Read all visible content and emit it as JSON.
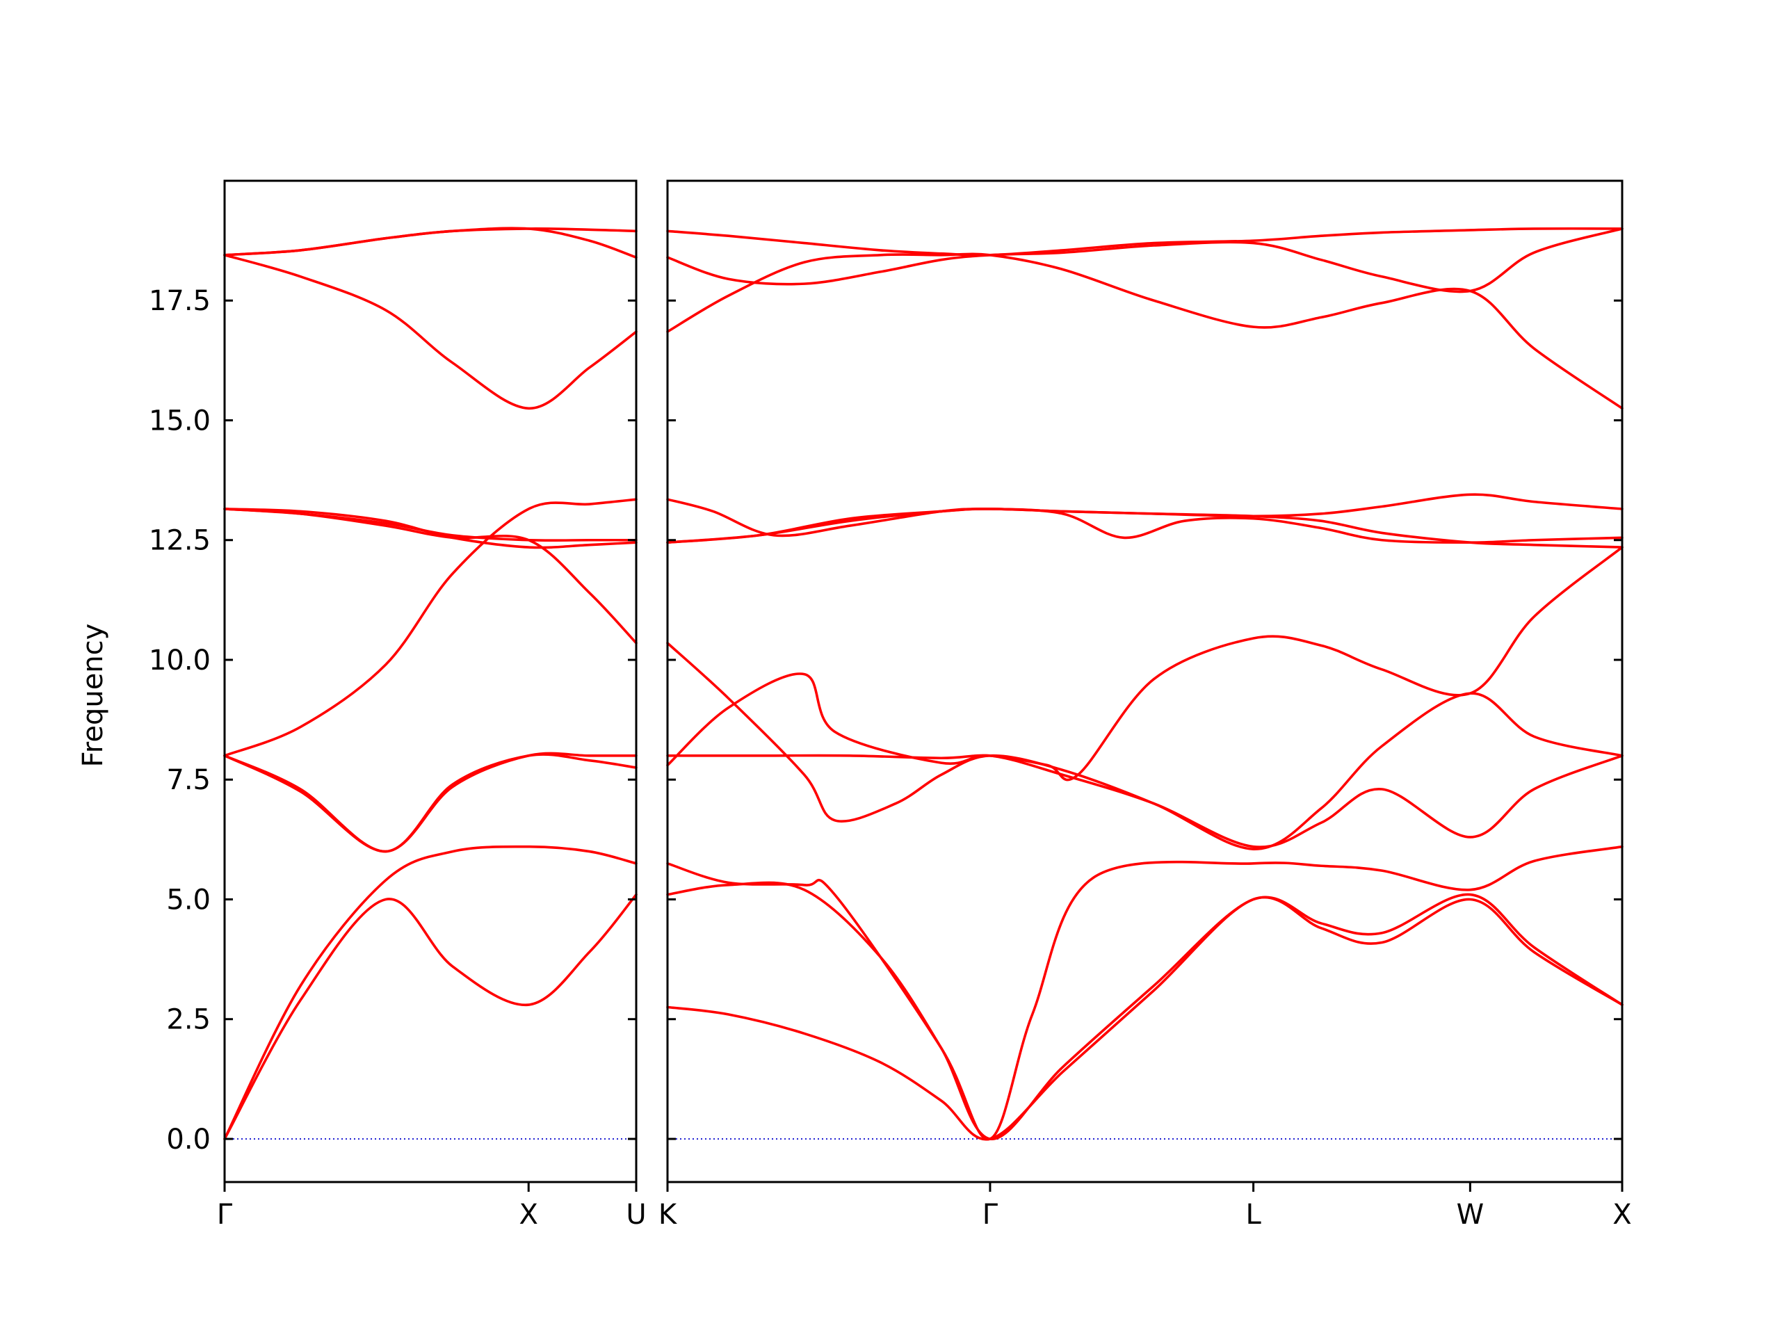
{
  "chart_data": {
    "type": "line",
    "ylabel": "Frequency",
    "ylim": [
      -0.9,
      20.0
    ],
    "yticks": [
      "0.0",
      "2.5",
      "5.0",
      "7.5",
      "10.0",
      "12.5",
      "15.0",
      "17.5"
    ],
    "ytick_values": [
      0.0,
      2.5,
      5.0,
      7.5,
      10.0,
      12.5,
      15.0,
      17.5
    ],
    "grid": false,
    "band_color": "#ff0000",
    "zero_line_color": "#0000cc",
    "panels": [
      {
        "x_ticks": [
          {
            "label": "Γ",
            "x": 0.0
          },
          {
            "label": "X",
            "x": 1.0
          },
          {
            "label": "U",
            "x": 1.354
          }
        ],
        "xlim": [
          0.0,
          1.354
        ],
        "bands": [
          {
            "x": [
              0,
              0.25,
              0.53,
              0.75,
              1.0,
              1.2,
              1.354
            ],
            "y": [
              0.0,
              2.9,
              5.0,
              3.6,
              2.8,
              3.9,
              5.1
            ]
          },
          {
            "x": [
              0,
              0.25,
              0.53,
              0.75,
              1.0,
              1.2,
              1.354
            ],
            "y": [
              0.0,
              3.2,
              5.4,
              6.0,
              6.1,
              6.0,
              5.75
            ]
          },
          {
            "x": [
              0,
              0.25,
              0.53,
              0.75,
              1.0,
              1.2,
              1.354
            ],
            "y": [
              8.0,
              7.3,
              6.0,
              7.4,
              8.0,
              7.9,
              7.75
            ]
          },
          {
            "x": [
              0,
              0.25,
              0.53,
              0.75,
              1.0,
              1.2,
              1.354
            ],
            "y": [
              8.0,
              7.25,
              6.0,
              7.35,
              8.0,
              8.0,
              8.0
            ]
          },
          {
            "x": [
              0,
              0.25,
              0.53,
              0.75,
              1.0,
              1.2,
              1.354
            ],
            "y": [
              8.0,
              8.6,
              9.9,
              11.8,
              13.15,
              13.25,
              13.35
            ]
          },
          {
            "x": [
              0,
              0.25,
              0.53,
              0.75,
              1.0,
              1.2,
              1.354
            ],
            "y": [
              13.15,
              13.1,
              12.9,
              12.55,
              12.35,
              12.4,
              12.45
            ]
          },
          {
            "x": [
              0,
              0.25,
              0.53,
              0.75,
              1.0,
              1.2,
              1.354
            ],
            "y": [
              13.15,
              13.05,
              12.8,
              12.55,
              12.5,
              11.4,
              10.35
            ]
          },
          {
            "x": [
              0,
              0.25,
              0.53,
              0.75,
              1.0,
              1.2,
              1.354
            ],
            "y": [
              18.45,
              18.0,
              17.3,
              16.2,
              15.25,
              16.1,
              16.85
            ]
          },
          {
            "x": [
              0,
              0.25,
              0.53,
              0.75,
              1.0,
              1.2,
              1.354
            ],
            "y": [
              18.45,
              18.55,
              18.8,
              18.95,
              19.0,
              18.75,
              18.4
            ]
          },
          {
            "x": [
              0,
              0.25,
              0.53,
              0.75,
              1.0,
              1.2,
              1.354
            ],
            "y": [
              18.45,
              18.55,
              18.8,
              18.95,
              19.0,
              18.98,
              18.95
            ]
          },
          {
            "x": [
              0,
              0.25,
              0.53,
              0.75,
              1.0,
              1.2,
              1.354
            ],
            "y": [
              13.15,
              13.05,
              12.85,
              12.6,
              12.5,
              12.5,
              12.5
            ]
          }
        ]
      },
      {
        "x_ticks": [
          {
            "label": "K",
            "x": 0.0
          },
          {
            "label": "Γ",
            "x": 1.061
          },
          {
            "label": "L",
            "x": 1.927
          },
          {
            "label": "W",
            "x": 2.64
          },
          {
            "label": "X",
            "x": 3.14
          }
        ],
        "xlim": [
          0.0,
          3.14
        ],
        "bands": [
          {
            "x": [
              0,
              0.2,
              0.45,
              0.7,
              0.9,
              1.061,
              1.3,
              1.6,
              1.927,
              2.15,
              2.35,
              2.64,
              2.85,
              3.14
            ],
            "y": [
              2.75,
              2.6,
              2.2,
              1.6,
              0.8,
              0.0,
              1.4,
              3.1,
              5.0,
              4.4,
              4.1,
              5.0,
              3.9,
              2.8
            ]
          },
          {
            "x": [
              0,
              0.2,
              0.45,
              0.7,
              0.9,
              1.061,
              1.3,
              1.6,
              1.927,
              2.15,
              2.35,
              2.64,
              2.85,
              3.14
            ],
            "y": [
              5.1,
              5.3,
              5.2,
              3.8,
              1.9,
              0.0,
              1.5,
              3.2,
              5.0,
              4.5,
              4.3,
              5.1,
              4.0,
              2.8
            ]
          },
          {
            "x": [
              0,
              0.2,
              0.45,
              0.55,
              0.9,
              1.061,
              1.2,
              1.4,
              1.927,
              2.15,
              2.35,
              2.64,
              2.85,
              3.14
            ],
            "y": [
              5.75,
              5.35,
              5.3,
              5.1,
              1.9,
              0.0,
              2.6,
              5.45,
              5.75,
              5.7,
              5.6,
              5.2,
              5.8,
              6.1
            ]
          },
          {
            "x": [
              0,
              0.2,
              0.45,
              0.55,
              0.9,
              1.061,
              1.3,
              1.6,
              1.927,
              2.15,
              2.35,
              2.64,
              2.85,
              3.14
            ],
            "y": [
              7.8,
              9.0,
              9.7,
              8.5,
              7.85,
              8.0,
              7.6,
              7.0,
              6.1,
              6.6,
              7.3,
              6.3,
              7.3,
              8.0
            ]
          },
          {
            "x": [
              0,
              0.2,
              0.45,
              0.55,
              0.75,
              0.9,
              1.061,
              1.3,
              1.6,
              1.927,
              2.15,
              2.35,
              2.64,
              2.85,
              3.14
            ],
            "y": [
              10.35,
              9.2,
              7.6,
              6.65,
              7.0,
              7.6,
              8.0,
              7.7,
              7.0,
              6.05,
              6.9,
              8.2,
              9.3,
              8.4,
              8.0
            ]
          },
          {
            "x": [
              0,
              0.3,
              0.6,
              0.9,
              1.061,
              1.25,
              1.35,
              1.6,
              1.927,
              2.15,
              2.35,
              2.64,
              2.85,
              3.14
            ],
            "y": [
              8.0,
              8.0,
              8.0,
              7.95,
              8.0,
              7.8,
              7.6,
              9.6,
              10.45,
              10.3,
              9.8,
              9.3,
              10.9,
              12.35
            ]
          },
          {
            "x": [
              0,
              0.3,
              0.6,
              0.9,
              1.061,
              1.3,
              1.6,
              1.927,
              2.15,
              2.35,
              2.64,
              2.85,
              3.14
            ],
            "y": [
              12.45,
              12.6,
              12.9,
              13.1,
              13.15,
              13.1,
              13.05,
              13.0,
              12.9,
              12.65,
              12.45,
              12.4,
              12.35
            ]
          },
          {
            "x": [
              0,
              0.3,
              0.6,
              0.9,
              1.061,
              1.3,
              1.5,
              1.7,
              1.927,
              2.15,
              2.35,
              2.64,
              2.85,
              3.14
            ],
            "y": [
              12.45,
              12.6,
              12.95,
              13.1,
              13.15,
              13.05,
              12.55,
              12.9,
              12.95,
              12.75,
              12.5,
              12.45,
              12.5,
              12.55
            ]
          },
          {
            "x": [
              0,
              0.15,
              0.35,
              0.6,
              0.9,
              1.061,
              1.3,
              1.6,
              1.927,
              2.15,
              2.35,
              2.64,
              2.85,
              3.14
            ],
            "y": [
              13.35,
              13.1,
              12.6,
              12.8,
              13.1,
              13.15,
              13.1,
              13.05,
              13.0,
              13.05,
              13.2,
              13.45,
              13.3,
              13.15
            ]
          },
          {
            "x": [
              0,
              0.2,
              0.45,
              0.7,
              0.9,
              1.061,
              1.3,
              1.6,
              1.927,
              2.15,
              2.35,
              2.64,
              2.85,
              3.14
            ],
            "y": [
              16.85,
              17.6,
              18.3,
              18.45,
              18.45,
              18.45,
              18.15,
              17.5,
              16.95,
              17.15,
              17.45,
              17.7,
              16.5,
              15.25
            ]
          },
          {
            "x": [
              0,
              0.2,
              0.45,
              0.7,
              0.9,
              1.061,
              1.3,
              1.6,
              1.927,
              2.15,
              2.35,
              2.64,
              2.85,
              3.14
            ],
            "y": [
              18.4,
              17.95,
              17.85,
              18.1,
              18.35,
              18.45,
              18.5,
              18.65,
              18.7,
              18.35,
              18.0,
              17.7,
              18.5,
              19.0
            ]
          },
          {
            "x": [
              0,
              0.2,
              0.45,
              0.7,
              0.9,
              1.061,
              1.3,
              1.6,
              1.927,
              2.15,
              2.35,
              2.64,
              2.85,
              3.14
            ],
            "y": [
              18.95,
              18.85,
              18.7,
              18.55,
              18.48,
              18.45,
              18.55,
              18.7,
              18.75,
              18.85,
              18.92,
              18.97,
              19.0,
              19.0
            ]
          }
        ]
      }
    ]
  }
}
